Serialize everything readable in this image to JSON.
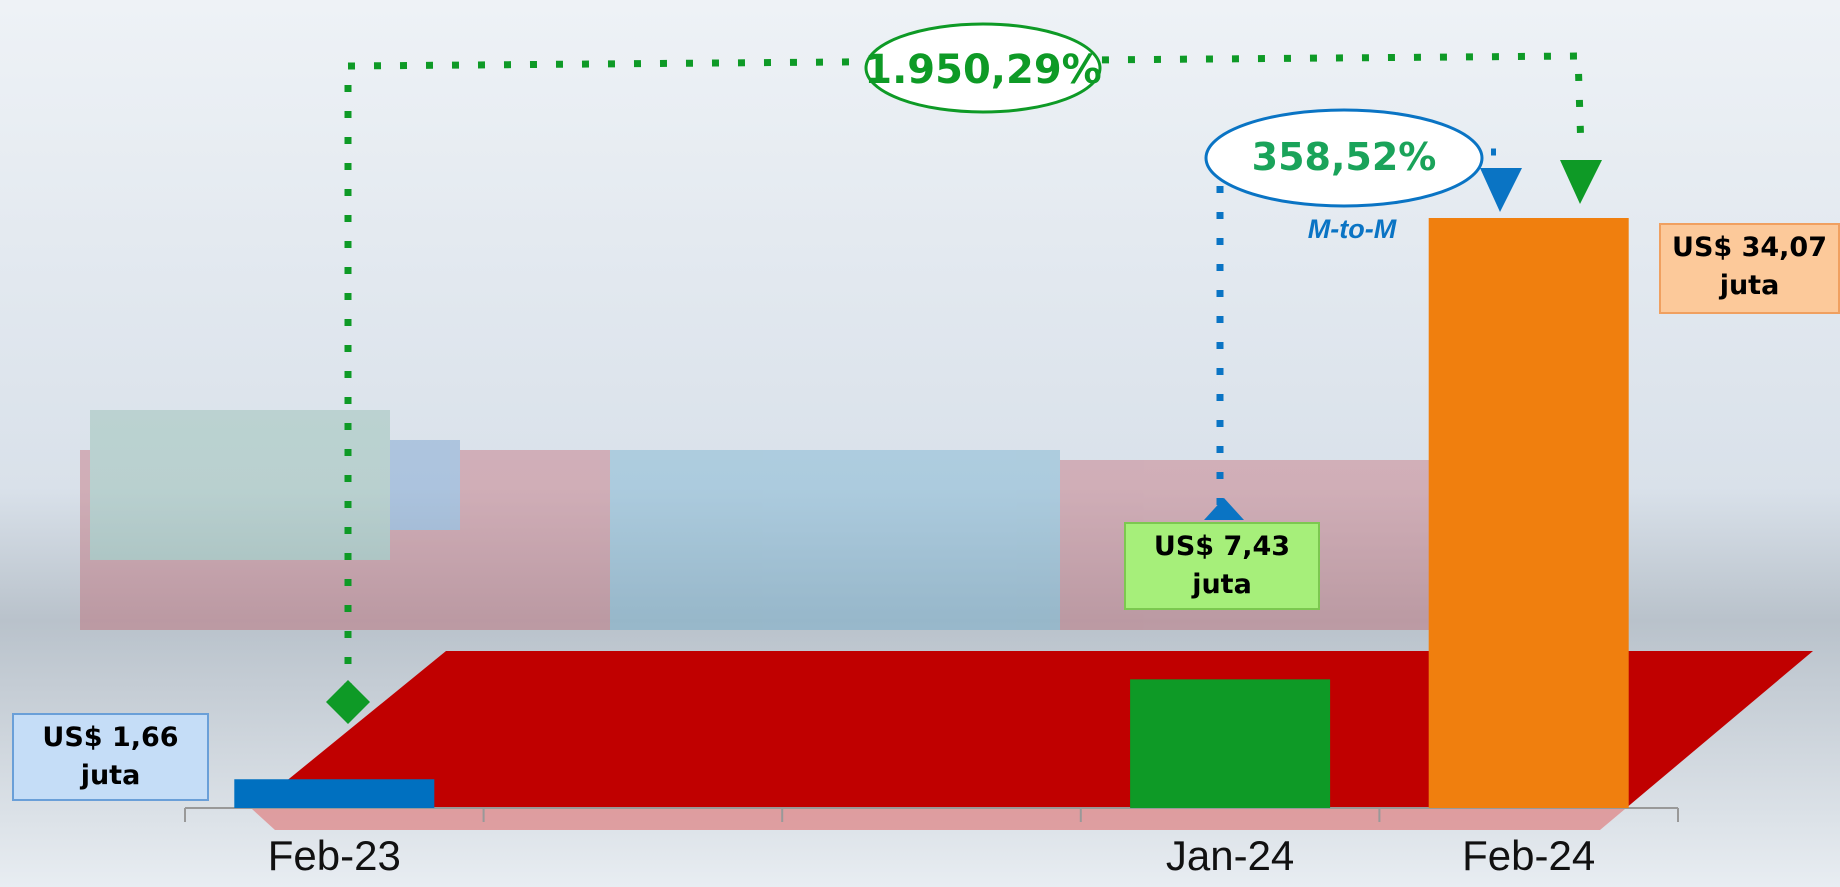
{
  "chart_data": {
    "type": "bar",
    "categories": [
      "Feb-23",
      null,
      null,
      "Jan-24",
      "Feb-24"
    ],
    "values": [
      1.66,
      null,
      null,
      7.43,
      34.07
    ],
    "value_labels": [
      "US$ 1,66 juta",
      null,
      null,
      "US$ 7,43 juta",
      "US$ 34,07 juta"
    ],
    "colors": [
      "#0070c0",
      null,
      null,
      "#0e9a26",
      "#f07f0e"
    ],
    "annotations": [
      "1.950,29%",
      "358,52%",
      "M-to-M"
    ]
  }
}
